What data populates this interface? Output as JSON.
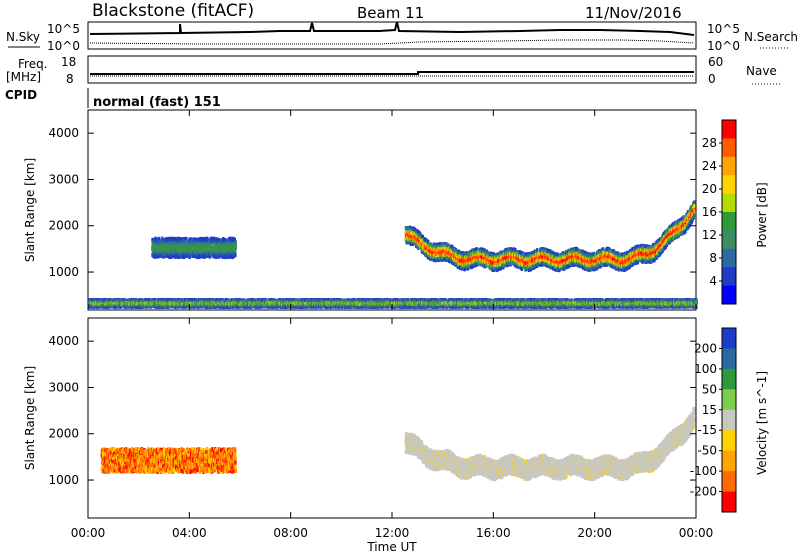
{
  "header": {
    "station": "Blackstone (fitACF)",
    "beam": "Beam 11",
    "date": "11/Nov/2016"
  },
  "labels": {
    "nsky": "N.Sky",
    "nsearch": "N.Search",
    "freq_line1": "Freq.",
    "freq_line2": "[MHz]",
    "nave": "Nave",
    "cpid": "CPID",
    "cpid_value": "normal (fast) 151",
    "noise_tick_high": "10^5",
    "noise_tick_low": "10^0",
    "freq_tick_high": "18",
    "freq_tick_low": "8",
    "nave_tick_high": "60",
    "nave_tick_low": "0"
  },
  "chart_data": [
    {
      "type": "heatmap",
      "title": "",
      "xlabel": "Time UT",
      "ylabel": "Slant Range [km]",
      "x_ticks": [
        "00:00",
        "04:00",
        "08:00",
        "12:00",
        "16:00",
        "20:00",
        "00:00"
      ],
      "y_ticks": [
        1000,
        2000,
        3000,
        4000
      ],
      "ylim": [
        180,
        4500
      ],
      "colorbar": {
        "label": "Power [dB]",
        "ticks": [
          "28",
          "24",
          "20",
          "16",
          "12",
          "8",
          "4"
        ],
        "colors": [
          "#ff0000",
          "#ff5a00",
          "#ffa500",
          "#ffd200",
          "#b4dc00",
          "#2e9a3c",
          "#3c8c64",
          "#2a6aa0",
          "#1e3cc8",
          "#0000ff"
        ]
      },
      "echo_regions": [
        {
          "name": "main band",
          "t_start": 12.5,
          "t_end": 23.9,
          "range_center_km": 1300,
          "thickness_km": 350,
          "peak_db": 28
        },
        {
          "name": "early patch",
          "t_start": 2.5,
          "t_end": 5.8,
          "range_center_km": 1500,
          "thickness_km": 400,
          "peak_db": 12
        },
        {
          "name": "near-range clutter",
          "t_start": 0,
          "t_end": 24,
          "range_center_km": 300,
          "thickness_km": 150,
          "peak_db": 16
        }
      ]
    },
    {
      "type": "heatmap",
      "title": "",
      "xlabel": "Time UT",
      "ylabel": "Slant Range [km]",
      "x_ticks": [
        "00:00",
        "04:00",
        "08:00",
        "12:00",
        "16:00",
        "20:00",
        "00:00"
      ],
      "y_ticks": [
        1000,
        2000,
        3000,
        4000
      ],
      "ylim": [
        180,
        4500
      ],
      "colorbar": {
        "label": "Velocity [m s^-1]",
        "ticks": [
          "200",
          "100",
          "50",
          "15",
          "-15",
          "-50",
          "-100",
          "-200"
        ],
        "colors": [
          "#1e3cc8",
          "#2a6aa0",
          "#2e9a3c",
          "#7ccd4c",
          "#c8c8c0",
          "#ffd200",
          "#ffa500",
          "#ff6a00",
          "#ff0000"
        ]
      },
      "echo_regions": [
        {
          "name": "main band ground scatter",
          "t_start": 12.5,
          "t_end": 23.9,
          "range_center_km": 1300,
          "thickness_km": 400,
          "velocity": "ground scatter"
        },
        {
          "name": "early patch",
          "t_start": 0.5,
          "t_end": 5.8,
          "range_center_km": 1400,
          "thickness_km": 500,
          "velocity": "-50 to -200"
        }
      ]
    }
  ]
}
